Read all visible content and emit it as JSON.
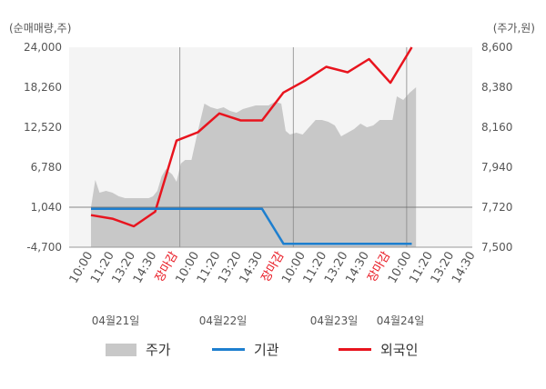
{
  "units": {
    "left": "(순매매량,주)",
    "right": "(주가,원)"
  },
  "colors": {
    "price_area": "#c8c8c8",
    "institution": "#1e7fcf",
    "foreign": "#e8141e",
    "axis_text": "#555555",
    "session_label": "#e8141e",
    "grid": "#dddddd"
  },
  "legend": {
    "price": "주가",
    "institution": "기관",
    "foreign": "외국인"
  },
  "chart_data": {
    "type": "line",
    "y_left": {
      "ticks": [
        "24,000",
        "18,260",
        "12,520",
        "6,780",
        "1,040",
        "-4,700"
      ],
      "min": -4700,
      "max": 24000
    },
    "y_right": {
      "ticks": [
        "8,600",
        "8,380",
        "8,160",
        "7,940",
        "7,720",
        "7,500"
      ],
      "min": 7500,
      "max": 8600
    },
    "x_ticks": [
      "10:00",
      "11:20",
      "13:20",
      "14:30",
      "장마감",
      "10:00",
      "11:20",
      "13:20",
      "14:30",
      "장마감",
      "10:00",
      "11:20",
      "13:20",
      "14:30",
      "장마감",
      "10:00",
      "11:20",
      "13:20",
      "14:30"
    ],
    "session_label": "장마감",
    "dates": [
      "04월21일",
      "04월22일",
      "04월23일",
      "04월24일"
    ],
    "series": [
      {
        "name": "외국인",
        "axis": "left",
        "x": [
          0,
          1,
          2,
          3,
          4,
          5,
          6,
          7,
          8,
          9,
          10,
          11,
          12,
          13,
          14,
          15
        ],
        "values": [
          -100,
          -600,
          -1700,
          400,
          10600,
          11800,
          14500,
          13500,
          13500,
          17500,
          19200,
          21200,
          20400,
          22300,
          18900,
          24000
        ]
      },
      {
        "name": "기관",
        "axis": "left",
        "x": [
          0,
          1,
          2,
          3,
          4,
          5,
          6,
          7,
          8,
          9,
          10,
          11,
          12,
          13,
          14,
          15
        ],
        "values": [
          800,
          800,
          800,
          800,
          800,
          800,
          800,
          800,
          800,
          -4200,
          -4200,
          -4200,
          -4200,
          -4200,
          -4200,
          -4200
        ]
      },
      {
        "name": "주가",
        "axis": "right",
        "type": "area",
        "x": [
          0,
          0.2,
          0.4,
          0.7,
          1,
          1.3,
          1.6,
          1.9,
          2.2,
          2.5,
          2.7,
          2.9,
          3.1,
          3.3,
          3.5,
          3.8,
          4.0,
          4.2,
          4.4,
          4.7,
          5.0,
          5.3,
          5.6,
          5.9,
          6.2,
          6.5,
          6.8,
          7.1,
          7.4,
          7.7,
          8.0,
          8.3,
          8.6,
          8.9,
          9.1,
          9.3,
          9.6,
          9.9,
          10.2,
          10.5,
          10.8,
          11.1,
          11.4,
          11.7,
          12.0,
          12.3,
          12.6,
          12.9,
          13.2,
          13.5,
          13.8,
          14.1,
          14.3,
          14.6,
          14.9,
          15.2
        ],
        "values": [
          7720,
          7870,
          7800,
          7810,
          7800,
          7780,
          7770,
          7770,
          7770,
          7770,
          7770,
          7780,
          7810,
          7890,
          7930,
          7900,
          7860,
          7960,
          7980,
          7980,
          8140,
          8290,
          8270,
          8260,
          8270,
          8250,
          8240,
          8260,
          8270,
          8280,
          8280,
          8280,
          8300,
          8290,
          8140,
          8120,
          8130,
          8120,
          8160,
          8200,
          8200,
          8190,
          8170,
          8110,
          8130,
          8150,
          8180,
          8160,
          8170,
          8200,
          8200,
          8200,
          8330,
          8310,
          8350,
          8380
        ]
      }
    ]
  }
}
